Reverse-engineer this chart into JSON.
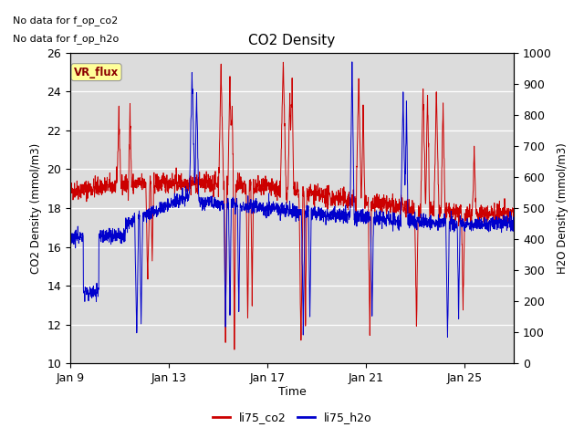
{
  "title": "CO2 Density",
  "xlabel": "Time",
  "ylabel_left": "CO2 Density (mmol/m3)",
  "ylabel_right": "H2O Density (mmol/m3)",
  "ylim_left": [
    10,
    26
  ],
  "ylim_right": [
    0,
    1000
  ],
  "yticks_left": [
    10,
    12,
    14,
    16,
    18,
    20,
    22,
    24,
    26
  ],
  "yticks_right": [
    0,
    100,
    200,
    300,
    400,
    500,
    600,
    700,
    800,
    900,
    1000
  ],
  "xtick_labels": [
    "Jan 9",
    "Jan 13",
    "Jan 17",
    "Jan 21",
    "Jan 25"
  ],
  "no_data_text1": "No data for f_op_co2",
  "no_data_text2": "No data for f_op_h2o",
  "vr_flux_label": "VR_flux",
  "legend_labels": [
    "li75_co2",
    "li75_h2o"
  ],
  "color_co2": "#cc0000",
  "color_h2o": "#0000cc",
  "bg_color": "#dcdcdc",
  "fig_bg": "#ffffff",
  "seed": 42,
  "n_points": 2000
}
